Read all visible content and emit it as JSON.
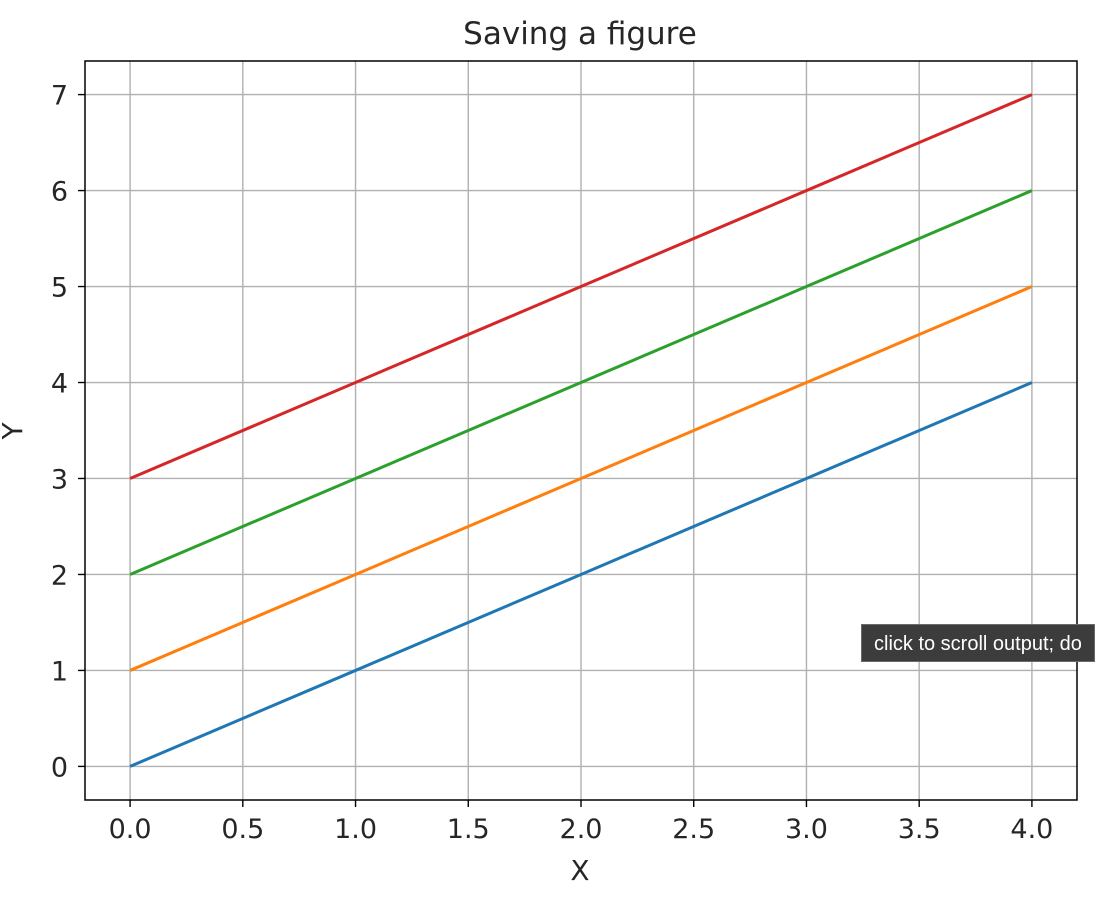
{
  "chart_data": {
    "type": "line",
    "title": "Saving a figure",
    "xlabel": "X",
    "ylabel": "Y",
    "x": [
      0,
      1,
      2,
      3,
      4
    ],
    "xlim": [
      -0.2,
      4.2
    ],
    "ylim": [
      -0.35,
      7.35
    ],
    "xticks": [
      0.0,
      0.5,
      1.0,
      1.5,
      2.0,
      2.5,
      3.0,
      3.5,
      4.0
    ],
    "xtick_labels": [
      "0.0",
      "0.5",
      "1.0",
      "1.5",
      "2.0",
      "2.5",
      "3.0",
      "3.5",
      "4.0"
    ],
    "yticks": [
      0,
      1,
      2,
      3,
      4,
      5,
      6,
      7
    ],
    "ytick_labels": [
      "0",
      "1",
      "2",
      "3",
      "4",
      "5",
      "6",
      "7"
    ],
    "grid": true,
    "series": [
      {
        "values": [
          0,
          1,
          2,
          3,
          4
        ],
        "color": "#1f77b4"
      },
      {
        "values": [
          1,
          2,
          3,
          4,
          5
        ],
        "color": "#ff7f0e"
      },
      {
        "values": [
          2,
          3,
          4,
          5,
          6
        ],
        "color": "#2ca02c"
      },
      {
        "values": [
          3,
          4,
          5,
          6,
          7
        ],
        "color": "#d62728"
      }
    ]
  },
  "tooltip": {
    "text": "click to scroll output; do"
  }
}
